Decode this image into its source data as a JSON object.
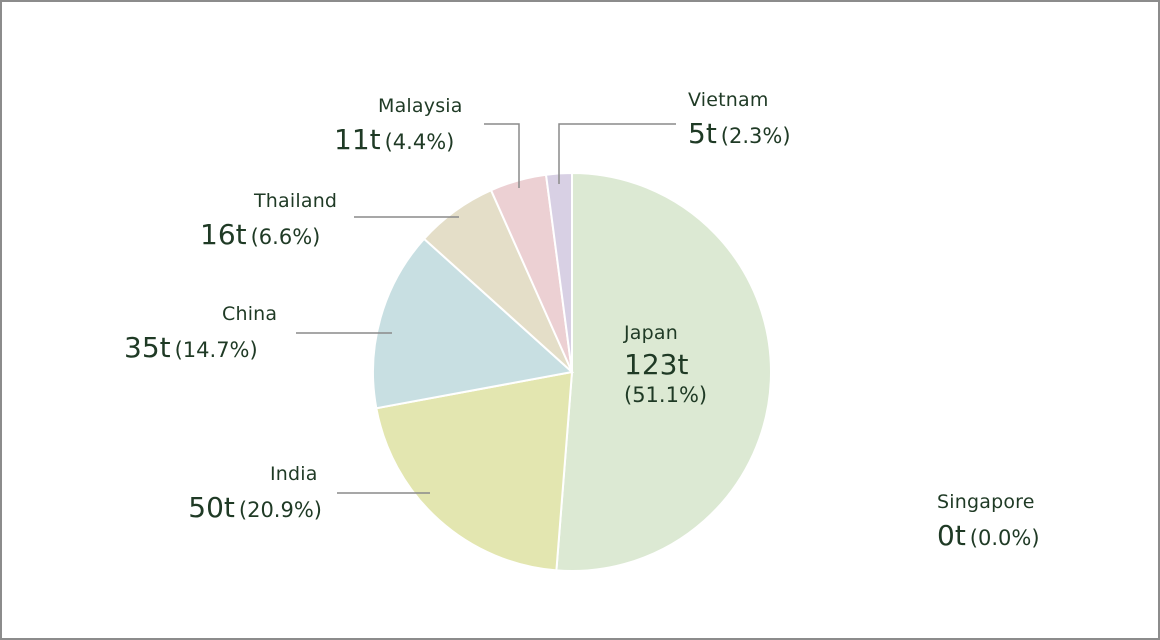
{
  "chart_data": {
    "type": "pie",
    "unit": "t",
    "slices": [
      {
        "name": "Japan",
        "value_label": "123t",
        "pct_label": "(51.1%)",
        "value": 123,
        "percent": 51.1,
        "color": "#dce9d3"
      },
      {
        "name": "India",
        "value_label": "50t",
        "pct_label": "(20.9%)",
        "value": 50,
        "percent": 20.9,
        "color": "#e3e6b0"
      },
      {
        "name": "China",
        "value_label": "35t",
        "pct_label": "(14.7%)",
        "value": 35,
        "percent": 14.7,
        "color": "#c8dfe2"
      },
      {
        "name": "Thailand",
        "value_label": "16t",
        "pct_label": "(6.6%)",
        "value": 16,
        "percent": 6.6,
        "color": "#e4dec8"
      },
      {
        "name": "Malaysia",
        "value_label": "11t",
        "pct_label": "(4.4%)",
        "value": 11,
        "percent": 4.4,
        "color": "#ecd0d3"
      },
      {
        "name": "Vietnam",
        "value_label": "5t",
        "pct_label": "(2.3%)",
        "value": 5,
        "percent": 2.3,
        "color": "#d8d0e4"
      },
      {
        "name": "Singapore",
        "value_label": "0t",
        "pct_label": "(0.0%)",
        "value": 0,
        "percent": 0.0,
        "color": "#ffffff"
      }
    ]
  },
  "colors": {
    "text": "#1f3a25",
    "leader_line": "#8a8a8a",
    "border": "#8c8c8c"
  }
}
